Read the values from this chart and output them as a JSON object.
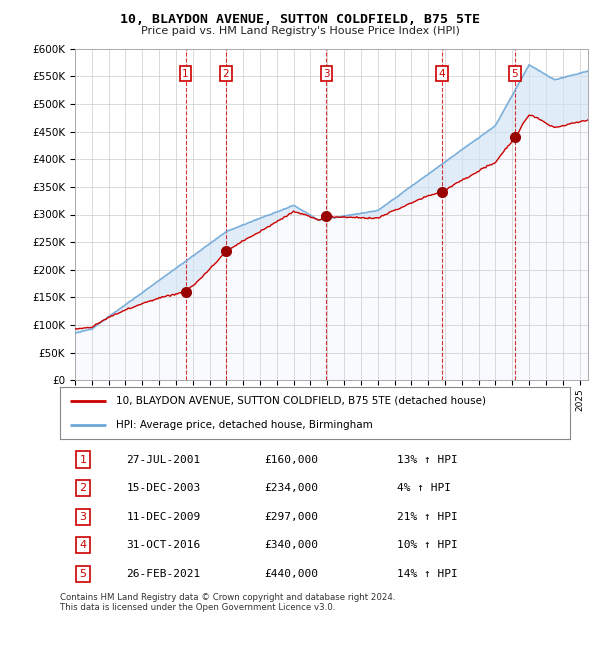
{
  "title": "10, BLAYDON AVENUE, SUTTON COLDFIELD, B75 5TE",
  "subtitle": "Price paid vs. HM Land Registry's House Price Index (HPI)",
  "ylim": [
    0,
    600000
  ],
  "yticks": [
    0,
    50000,
    100000,
    150000,
    200000,
    250000,
    300000,
    350000,
    400000,
    450000,
    500000,
    550000,
    600000
  ],
  "ytick_labels": [
    "£0",
    "£50K",
    "£100K",
    "£150K",
    "£200K",
    "£250K",
    "£300K",
    "£350K",
    "£400K",
    "£450K",
    "£500K",
    "£550K",
    "£600K"
  ],
  "hpi_color": "#6ea8d8",
  "hpi_fill_color": "#d0e4f5",
  "price_color": "#cc0000",
  "plot_bg": "#ffffff",
  "grid_color": "#cccccc",
  "sale_markers": [
    {
      "num": 1,
      "year": 2001.57,
      "price": 160000
    },
    {
      "num": 2,
      "year": 2003.96,
      "price": 234000
    },
    {
      "num": 3,
      "year": 2009.95,
      "price": 297000
    },
    {
      "num": 4,
      "year": 2016.83,
      "price": 340000
    },
    {
      "num": 5,
      "year": 2021.15,
      "price": 440000
    }
  ],
  "legend_line1": "10, BLAYDON AVENUE, SUTTON COLDFIELD, B75 5TE (detached house)",
  "legend_line2": "HPI: Average price, detached house, Birmingham",
  "footer": "Contains HM Land Registry data © Crown copyright and database right 2024.\nThis data is licensed under the Open Government Licence v3.0.",
  "table_rows": [
    [
      "1",
      "27-JUL-2001",
      "£160,000",
      "13% ↑ HPI"
    ],
    [
      "2",
      "15-DEC-2003",
      "£234,000",
      "4% ↑ HPI"
    ],
    [
      "3",
      "11-DEC-2009",
      "£297,000",
      "21% ↑ HPI"
    ],
    [
      "4",
      "31-OCT-2016",
      "£340,000",
      "10% ↑ HPI"
    ],
    [
      "5",
      "26-FEB-2021",
      "£440,000",
      "14% ↑ HPI"
    ]
  ]
}
